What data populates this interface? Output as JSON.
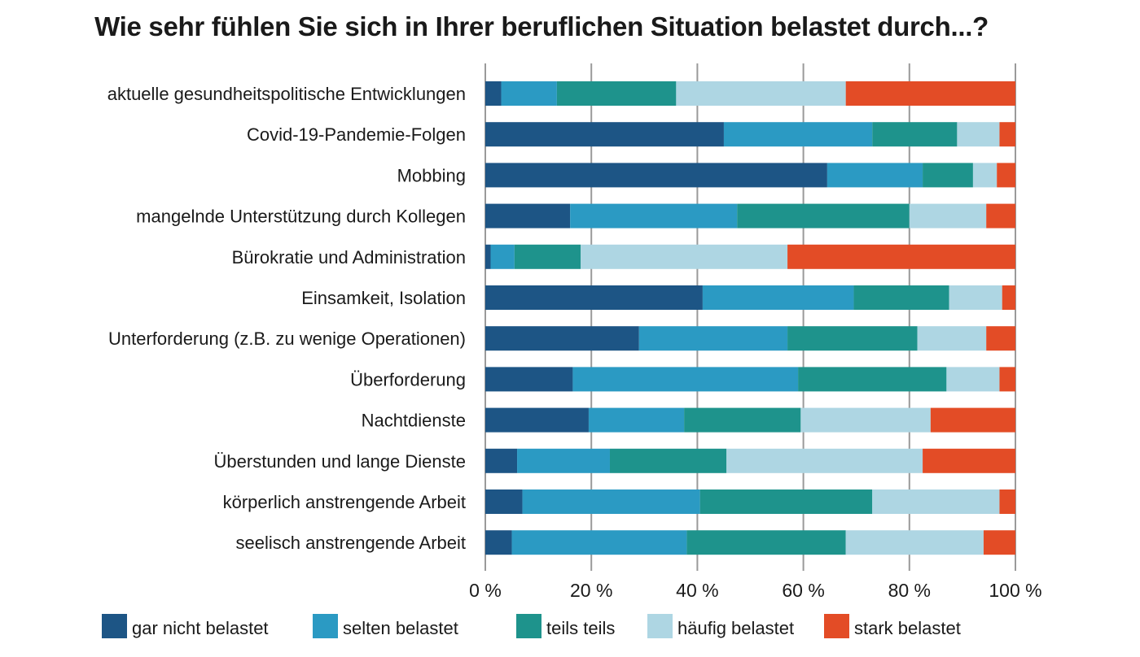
{
  "chart_data": {
    "type": "bar",
    "orientation": "horizontal",
    "stacked": true,
    "title": "Wie sehr fühlen Sie sich in Ihrer beruflichen Situation belastet durch...?",
    "xlim": [
      0,
      100
    ],
    "x_ticks": [
      "0 %",
      "20 %",
      "40 %",
      "60 %",
      "80 %",
      "100 %"
    ],
    "grid": true,
    "legend_position": "bottom",
    "categories": [
      "aktuelle gesundheitspolitische Entwicklungen",
      "Covid-19-Pandemie-Folgen",
      "Mobbing",
      "mangelnde Unterstützung durch Kollegen",
      "Bürokratie und Administration",
      "Einsamkeit, Isolation",
      "Unterforderung (z.B. zu wenige Operationen)",
      "Überforderung",
      "Nachtdienste",
      "Überstunden und lange Dienste",
      "körperlich anstrengende Arbeit",
      "seelisch anstrengende Arbeit"
    ],
    "series": [
      {
        "name": "gar nicht belastet",
        "color": "#1d5585",
        "values": [
          3,
          45,
          64.5,
          16,
          1,
          41,
          29,
          16.5,
          19.5,
          6,
          7,
          5
        ]
      },
      {
        "name": "selten belastet",
        "color": "#2b9ac3",
        "values": [
          10.5,
          28,
          18,
          31.5,
          4.5,
          28.5,
          28,
          42.5,
          18,
          17.5,
          33.5,
          33
        ]
      },
      {
        "name": "teils teils",
        "color": "#1e938c",
        "values": [
          22.5,
          16,
          9.5,
          32.5,
          12.5,
          18,
          24.5,
          28,
          22,
          22,
          32.5,
          30
        ]
      },
      {
        "name": "häufig belastet",
        "color": "#aed6e3",
        "values": [
          32,
          8,
          4.5,
          14.5,
          39,
          10,
          13,
          10,
          24.5,
          37,
          24,
          26
        ]
      },
      {
        "name": "stark belastet",
        "color": "#e34c26",
        "values": [
          32,
          3,
          3.5,
          5.5,
          43,
          2.5,
          5.5,
          3,
          16,
          17.5,
          3,
          6
        ]
      }
    ]
  }
}
